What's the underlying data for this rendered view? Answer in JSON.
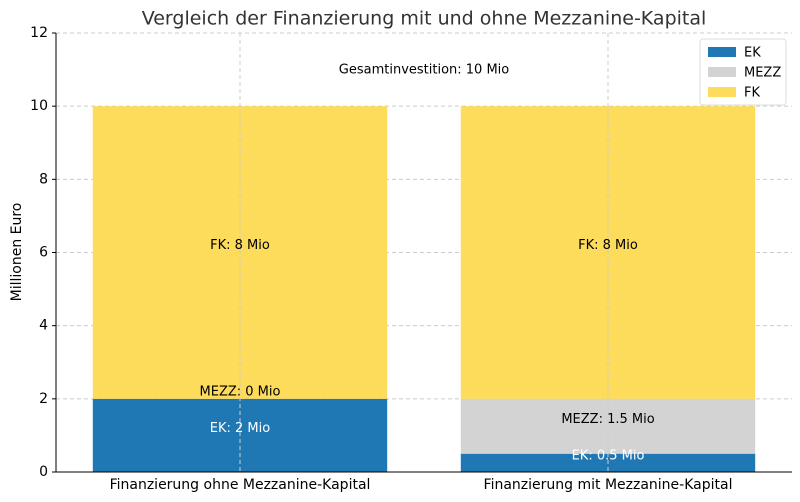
{
  "chart_data": {
    "type": "stacked_bar",
    "title": "Vergleich der Finanzierung mit und ohne Mezzanine-Kapital",
    "ylabel": "Millionen Euro",
    "annotation": "Gesamtinvestition: 10 Mio",
    "categories": [
      "Finanzierung ohne Mezzanine-Kapital",
      "Finanzierung mit Mezzanine-Kapital"
    ],
    "series": [
      {
        "name": "EK",
        "color": "#1f77b4",
        "label_color": "#ffffff",
        "values": [
          2,
          0.5
        ],
        "value_labels": [
          "EK: 2 Mio",
          "EK: 0.5 Mio"
        ]
      },
      {
        "name": "MEZZ",
        "color": "#d3d3d3",
        "label_color": "#000000",
        "values": [
          0,
          1.5
        ],
        "value_labels": [
          "MEZZ: 0 Mio",
          "MEZZ: 1.5 Mio"
        ]
      },
      {
        "name": "FK",
        "color": "#fddc5c",
        "label_color": "#000000",
        "values": [
          8,
          8
        ],
        "value_labels": [
          "FK: 8 Mio",
          "FK: 8 Mio"
        ]
      }
    ],
    "ylim": [
      0,
      12
    ],
    "yticks": [
      0,
      2,
      4,
      6,
      8,
      10,
      12
    ],
    "grid": true,
    "legend": "upper right"
  }
}
